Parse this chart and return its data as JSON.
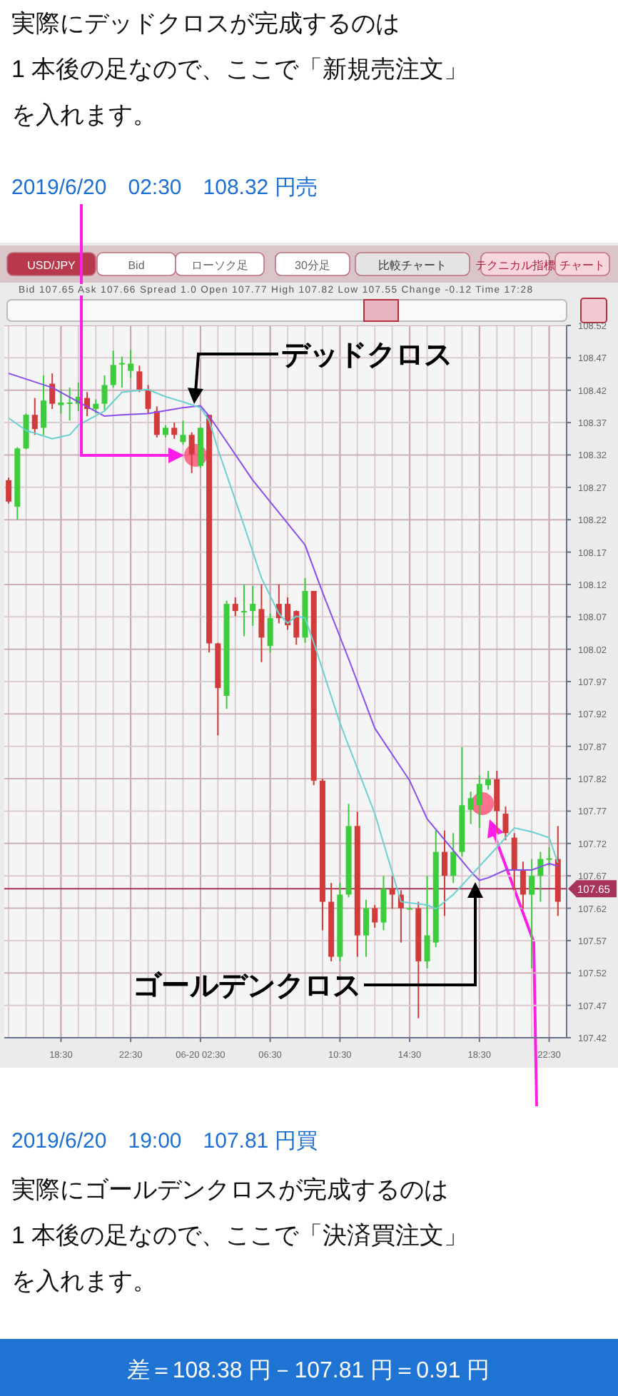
{
  "chart_data": {
    "type": "candlestick",
    "title": "実際にデッドクロスが完成するのは",
    "subtitle": "1 本後の足なので、ここで「新規売注文」",
    "x": [
      "2019-06-19T15:30",
      "2019-06-19T16:00",
      "2019-06-19T16:30",
      "2019-06-19T17:00",
      "2019-06-19T17:30",
      "2019-06-19T18:00",
      "2019-06-19T18:30",
      "2019-06-19T19:00",
      "2019-06-19T19:30",
      "2019-06-19T20:00",
      "2019-06-19T20:30",
      "2019-06-19T21:00",
      "2019-06-19T21:30",
      "2019-06-19T22:00",
      "2019-06-19T22:30",
      "2019-06-19T23:00",
      "2019-06-19T23:30",
      "2019-06-20T00:00",
      "2019-06-20T00:30",
      "2019-06-20T01:00",
      "2019-06-20T01:30",
      "2019-06-20T02:00",
      "2019-06-20T02:30",
      "2019-06-20T03:00",
      "2019-06-20T03:30",
      "2019-06-20T04:00",
      "2019-06-20T04:30",
      "2019-06-20T05:00",
      "2019-06-20T05:30",
      "2019-06-20T06:00",
      "2019-06-20T06:30",
      "2019-06-20T07:00",
      "2019-06-20T07:30",
      "2019-06-20T08:00",
      "2019-06-20T08:30",
      "2019-06-20T09:00",
      "2019-06-20T09:30",
      "2019-06-20T10:00",
      "2019-06-20T10:30",
      "2019-06-20T11:00",
      "2019-06-20T11:30",
      "2019-06-20T12:00",
      "2019-06-20T12:30",
      "2019-06-20T13:00",
      "2019-06-20T13:30",
      "2019-06-20T14:00",
      "2019-06-20T14:30",
      "2019-06-20T15:00",
      "2019-06-20T15:30",
      "2019-06-20T16:00",
      "2019-06-20T16:30",
      "2019-06-20T17:00",
      "2019-06-20T17:30",
      "2019-06-20T18:00",
      "2019-06-20T18:30",
      "2019-06-20T19:00",
      "2019-06-20T19:30",
      "2019-06-20T20:00",
      "2019-06-20T20:30",
      "2019-06-20T21:00",
      "2019-06-20T21:30",
      "2019-06-20T22:00",
      "2019-06-20T22:30",
      "2019-06-20T23:00"
    ],
    "ohlc": [
      [
        108.281,
        108.285,
        108.245,
        108.248
      ],
      [
        108.24,
        108.332,
        108.22,
        108.33
      ],
      [
        108.33,
        108.384,
        108.329,
        108.382
      ],
      [
        108.382,
        108.408,
        108.351,
        108.36
      ],
      [
        108.362,
        108.443,
        108.351,
        108.404
      ],
      [
        108.43,
        108.446,
        108.391,
        108.399
      ],
      [
        108.397,
        108.421,
        108.384,
        108.401
      ],
      [
        108.399,
        108.424,
        108.373,
        108.401
      ],
      [
        108.399,
        108.432,
        108.388,
        108.41
      ],
      [
        108.408,
        108.417,
        108.38,
        108.391
      ],
      [
        108.391,
        108.406,
        108.384,
        108.399
      ],
      [
        108.399,
        108.443,
        108.388,
        108.428
      ],
      [
        108.428,
        108.481,
        108.424,
        108.459
      ],
      [
        108.461,
        108.472,
        108.424,
        108.462
      ],
      [
        108.45,
        108.482,
        108.439,
        108.461
      ],
      [
        108.449,
        108.458,
        108.417,
        108.421
      ],
      [
        108.421,
        108.428,
        108.384,
        108.391
      ],
      [
        108.388,
        108.395,
        108.347,
        108.351
      ],
      [
        108.351,
        108.366,
        108.347,
        108.362
      ],
      [
        108.362,
        108.37,
        108.345,
        108.351
      ],
      [
        108.34,
        108.373,
        108.336,
        108.351
      ],
      [
        108.351,
        108.355,
        108.292,
        108.321
      ],
      [
        108.303,
        108.362,
        108.3,
        108.362
      ],
      [
        108.382,
        108.382,
        108.015,
        108.029
      ],
      [
        108.029,
        108.03,
        107.887,
        107.96
      ],
      [
        107.948,
        108.095,
        107.928,
        108.09
      ],
      [
        108.09,
        108.1,
        108.071,
        108.079
      ],
      [
        108.078,
        108.12,
        108.04,
        108.079
      ],
      [
        108.079,
        108.118,
        108.056,
        108.09
      ],
      [
        108.082,
        108.12,
        108.0,
        108.038
      ],
      [
        108.025,
        108.075,
        108.015,
        108.068
      ],
      [
        108.09,
        108.12,
        108.06,
        108.068
      ],
      [
        108.09,
        108.1,
        108.05,
        108.057
      ],
      [
        108.079,
        108.08,
        108.027,
        108.038
      ],
      [
        108.038,
        108.13,
        108.03,
        108.11
      ],
      [
        108.11,
        108.11,
        107.81,
        107.817
      ],
      [
        107.817,
        107.82,
        107.586,
        107.63
      ],
      [
        107.63,
        107.659,
        107.538,
        107.545
      ],
      [
        107.545,
        107.659,
        107.538,
        107.641
      ],
      [
        107.641,
        107.781,
        107.637,
        107.747
      ],
      [
        107.747,
        107.769,
        107.545,
        107.578
      ],
      [
        107.578,
        107.633,
        107.545,
        107.62
      ],
      [
        107.62,
        107.625,
        107.59,
        107.598
      ],
      [
        107.598,
        107.67,
        107.586,
        107.65
      ],
      [
        107.65,
        107.67,
        107.619,
        107.641
      ],
      [
        107.641,
        107.648,
        107.567,
        107.62
      ],
      [
        107.62,
        107.622,
        107.618,
        107.62
      ],
      [
        107.62,
        107.63,
        107.45,
        107.538
      ],
      [
        107.538,
        107.67,
        107.527,
        107.578
      ],
      [
        107.567,
        107.74,
        107.56,
        107.707
      ],
      [
        107.707,
        107.74,
        107.608,
        107.67
      ],
      [
        107.67,
        107.736,
        107.659,
        107.707
      ],
      [
        107.707,
        107.869,
        107.7,
        107.779
      ],
      [
        107.772,
        107.8,
        107.75,
        107.79
      ],
      [
        107.779,
        107.825,
        107.744,
        107.812
      ],
      [
        107.81,
        107.832,
        107.803,
        107.819
      ],
      [
        107.819,
        107.832,
        107.736,
        107.77
      ],
      [
        107.766,
        107.777,
        107.725,
        107.736
      ],
      [
        107.729,
        107.736,
        107.648,
        107.679
      ],
      [
        107.679,
        107.692,
        107.619,
        107.641
      ],
      [
        107.641,
        107.696,
        107.527,
        107.67
      ],
      [
        107.67,
        107.707,
        107.63,
        107.696
      ],
      [
        107.696,
        107.714,
        107.685,
        107.697
      ],
      [
        107.696,
        107.747,
        107.608,
        107.63
      ]
    ],
    "colors": [
      "#d13b3b",
      "#3ccc3c",
      "#3ccc3c",
      "#d13b3b",
      "#3ccc3c",
      "#d13b3b",
      "#3ccc3c",
      "#3ccc3c",
      "#3ccc3c",
      "#d13b3b",
      "#3ccc3c",
      "#3ccc3c",
      "#3ccc3c",
      "#3ccc3c",
      "#3ccc3c",
      "#d13b3b",
      "#d13b3b",
      "#d13b3b",
      "#3ccc3c",
      "#d13b3b",
      "#3ccc3c",
      "#d13b3b",
      "#3ccc3c",
      "#d13b3b",
      "#d13b3b",
      "#3ccc3c",
      "#d13b3b",
      "#3ccc3c",
      "#3ccc3c",
      "#d13b3b",
      "#3ccc3c",
      "#d13b3b",
      "#d13b3b",
      "#d13b3b",
      "#3ccc3c",
      "#d13b3b",
      "#d13b3b",
      "#d13b3b",
      "#3ccc3c",
      "#3ccc3c",
      "#d13b3b",
      "#3ccc3c",
      "#d13b3b",
      "#3ccc3c",
      "#d13b3b",
      "#d13b3b",
      "#3ccc3c",
      "#d13b3b",
      "#3ccc3c",
      "#3ccc3c",
      "#d13b3b",
      "#3ccc3c",
      "#3ccc3c",
      "#3ccc3c",
      "#3ccc3c",
      "#3ccc3c",
      "#d13b3b",
      "#d13b3b",
      "#d13b3b",
      "#d13b3b",
      "#3ccc3c",
      "#3ccc3c",
      "#3ccc3c",
      "#d13b3b"
    ],
    "series": [
      {
        "type": "line",
        "color": "#8a4df0",
        "x": [
          "2019-06-19T15:30",
          "2019-06-19T18:00",
          "2019-06-19T19:30",
          "2019-06-19T21:00",
          "2019-06-19T22:00",
          "2019-06-19T23:30",
          "2019-06-20T01:30",
          "2019-06-20T02:30",
          "2019-06-20T03:00",
          "2019-06-20T05:30",
          "2019-06-20T08:30",
          "2019-06-20T09:30",
          "2019-06-20T11:00",
          "2019-06-20T12:30",
          "2019-06-20T14:30",
          "2019-06-20T15:30",
          "2019-06-20T18:00",
          "2019-06-20T18:30",
          "2019-06-20T19:00",
          "2019-06-20T20:00",
          "2019-06-20T21:30",
          "2019-06-20T22:30",
          "2019-06-20T23:00"
        ],
        "values": [
          108.446,
          108.424,
          108.402,
          108.38,
          108.382,
          108.384,
          108.393,
          108.396,
          108.38,
          108.281,
          108.181,
          108.108,
          108.005,
          107.898,
          107.817,
          107.758,
          107.677,
          107.663,
          107.667,
          107.679,
          107.679,
          107.689,
          107.685
        ]
      },
      {
        "type": "line",
        "color": "#6ad0d0",
        "x": [
          "2019-06-19T15:30",
          "2019-06-19T16:30",
          "2019-06-19T18:00",
          "2019-06-19T19:00",
          "2019-06-19T19:30",
          "2019-06-19T21:00",
          "2019-06-19T22:00",
          "2019-06-19T23:30",
          "2019-06-20T00:30",
          "2019-06-20T01:30",
          "2019-06-20T02:30",
          "2019-06-20T03:00",
          "2019-06-20T03:30",
          "2019-06-20T05:00",
          "2019-06-20T06:00",
          "2019-06-20T07:00",
          "2019-06-20T07:30",
          "2019-06-20T08:00",
          "2019-06-20T08:30",
          "2019-06-20T09:00",
          "2019-06-20T10:30",
          "2019-06-20T12:30",
          "2019-06-20T14:00",
          "2019-06-20T15:30",
          "2019-06-20T16:00",
          "2019-06-20T17:00",
          "2019-06-20T18:00",
          "2019-06-20T19:30",
          "2019-06-20T20:30",
          "2019-06-20T21:30",
          "2019-06-20T22:30",
          "2019-06-20T23:00"
        ],
        "values": [
          108.377,
          108.358,
          108.345,
          108.351,
          108.366,
          108.388,
          108.417,
          108.421,
          108.41,
          108.402,
          108.393,
          108.373,
          108.329,
          108.211,
          108.13,
          108.075,
          108.06,
          108.071,
          108.068,
          108.03,
          107.906,
          107.766,
          107.63,
          107.625,
          107.619,
          107.641,
          107.67,
          107.714,
          107.744,
          107.738,
          107.729,
          107.69
        ]
      }
    ],
    "xlim": [
      "2019-06-19T15:15",
      "2019-06-20T23:30"
    ],
    "xticks": [
      {
        "value": "2019-06-19T18:30",
        "label": "18:30"
      },
      {
        "value": "2019-06-19T22:30",
        "label": "22:30"
      },
      {
        "value": "2019-06-20T02:30",
        "label": "06-20 02:30"
      },
      {
        "value": "2019-06-20T06:30",
        "label": "06:30"
      },
      {
        "value": "2019-06-20T10:30",
        "label": "10:30"
      },
      {
        "value": "2019-06-20T14:30",
        "label": "14:30"
      },
      {
        "value": "2019-06-20T18:30",
        "label": "18:30"
      },
      {
        "value": "2019-06-20T22:30",
        "label": "22:30"
      }
    ],
    "ylim": [
      107.42,
      108.52
    ],
    "yticks": [
      107.42,
      107.47,
      107.52,
      107.57,
      107.62,
      107.67,
      107.72,
      107.77,
      107.82,
      107.87,
      107.92,
      107.97,
      108.02,
      108.07,
      108.12,
      108.17,
      108.22,
      108.27,
      108.32,
      108.37,
      108.42,
      108.47,
      108.52
    ],
    "grid": true,
    "ref_lines": [
      {
        "axis": "y",
        "value": 107.65,
        "label": "107.65",
        "color": "#a8345a"
      }
    ],
    "annotations": [
      "USD/JPY",
      "Bid",
      "ローソク足",
      "30分足",
      "比較チャート",
      "テクニカル指標",
      "チャート",
      "Bid 107.65 Ask 107.66 Spread 1.0 Open 107.77 High 107.82 Low 107.55 Change -0.12 Time 17:28",
      "2019/6/20　02:30　108.32 円売",
      "デッドクロス",
      "ゴールデンクロス",
      "2019/6/20　19:00　107.81 円買",
      "実際にゴールデンクロスが完成するのは",
      "1 本後の足なので、ここで「決済買注文」",
      "を入れます。",
      "差＝108.38 円－107.81 円＝0.91 円",
      "を入れます。"
    ]
  }
}
